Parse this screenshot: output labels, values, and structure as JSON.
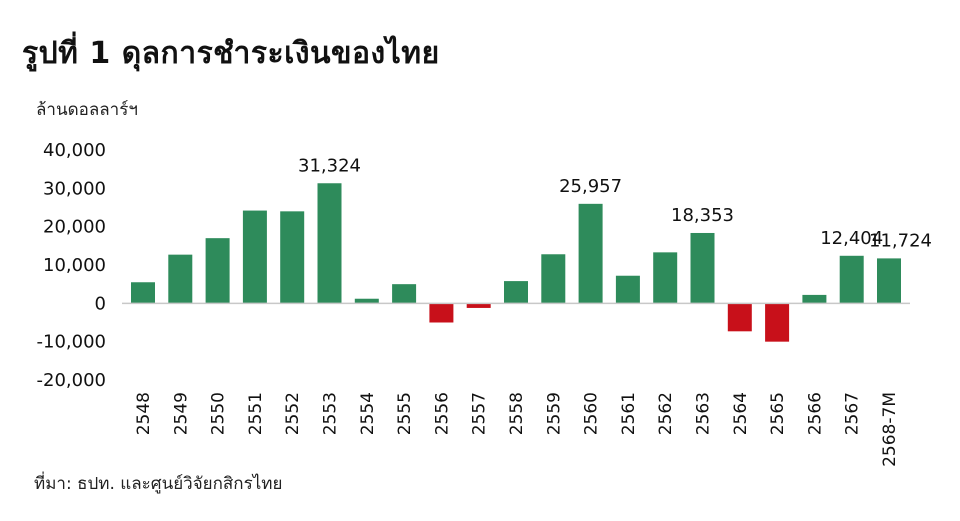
{
  "chart_data": {
    "type": "bar",
    "title": "รูปที่ 1 ดุลการชำระเงินของไทย",
    "ylabel": "ล้านดอลลาร์ฯ",
    "source": "ที่มา: ธปท. และศูนย์วิจัยกสิกรไทย",
    "categories": [
      "2548",
      "2549",
      "2550",
      "2551",
      "2552",
      "2553",
      "2554",
      "2555",
      "2556",
      "2557",
      "2558",
      "2559",
      "2560",
      "2561",
      "2562",
      "2563",
      "2564",
      "2565",
      "2566",
      "2567",
      "2568-7M"
    ],
    "values": [
      5500,
      12700,
      17000,
      24200,
      24000,
      31324,
      1200,
      5000,
      -5000,
      -1200,
      5800,
      12800,
      25957,
      7200,
      13300,
      18353,
      -7300,
      -10000,
      2200,
      12404,
      11724
    ],
    "data_labels": [
      {
        "index": 5,
        "text": "31,324"
      },
      {
        "index": 12,
        "text": "25,957"
      },
      {
        "index": 15,
        "text": "18,353"
      },
      {
        "index": 19,
        "text": "12,404"
      },
      {
        "index": 20,
        "text": "11,724"
      }
    ],
    "yticks": [
      40000,
      30000,
      20000,
      10000,
      0,
      -10000,
      -20000
    ],
    "ytick_labels": [
      "40,000",
      "30,000",
      "20,000",
      "10,000",
      "0",
      "-10,000",
      "-20,000"
    ],
    "ylim": [
      -20000,
      40000
    ],
    "grid": false,
    "legend": "none",
    "colors": {
      "positive": "#2e8b5b",
      "negative": "#c8101a",
      "axis": "#c8c8c8"
    }
  }
}
